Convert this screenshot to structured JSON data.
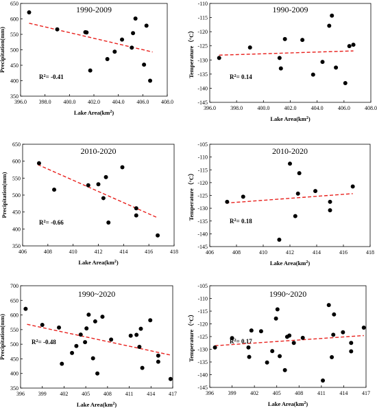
{
  "chart_data": [
    {
      "type": "scatter",
      "title": "1990-2009",
      "xlabel": "Lake Area(km²)",
      "ylabel": "Precipitation(mm)",
      "xlim": [
        396,
        408
      ],
      "ylim": [
        350,
        650
      ],
      "x_ticks": [
        "396.0",
        "398.0",
        "400.0",
        "402.0",
        "404.0",
        "406.0",
        "408.0"
      ],
      "y_ticks": [
        "350",
        "400",
        "450",
        "500",
        "550",
        "600",
        "650"
      ],
      "r2_label": "R²= -0.41",
      "trend": {
        "x": [
          396.7,
          406.8
        ],
        "y": [
          586,
          493
        ],
        "color": "#e8201c",
        "style": "dashed"
      },
      "points": [
        {
          "x": 396.7,
          "y": 621
        },
        {
          "x": 399.0,
          "y": 566
        },
        {
          "x": 401.3,
          "y": 557
        },
        {
          "x": 401.4,
          "y": 556
        },
        {
          "x": 401.7,
          "y": 433
        },
        {
          "x": 403.1,
          "y": 470
        },
        {
          "x": 403.7,
          "y": 494
        },
        {
          "x": 404.3,
          "y": 533
        },
        {
          "x": 405.1,
          "y": 507
        },
        {
          "x": 405.2,
          "y": 554
        },
        {
          "x": 405.4,
          "y": 601
        },
        {
          "x": 406.1,
          "y": 452
        },
        {
          "x": 406.3,
          "y": 578
        },
        {
          "x": 406.6,
          "y": 400
        }
      ]
    },
    {
      "type": "scatter",
      "title": "1990-2009",
      "xlabel": "Lake Area(km²)",
      "ylabel": "Temperature（°C）",
      "xlim": [
        396,
        408
      ],
      "ylim": [
        -145,
        -110
      ],
      "x_ticks": [
        "396.0",
        "398.0",
        "400.0",
        "402.0",
        "404.0",
        "406.0",
        "408.0"
      ],
      "y_ticks": [
        "-110",
        "-115",
        "-120",
        "-125",
        "-130",
        "-135",
        "-140",
        "-145"
      ],
      "r2_label": "R²= 0.14",
      "trend": {
        "x": [
          396.7,
          406.7
        ],
        "y": [
          -128.3,
          -126.8
        ],
        "color": "#e8201c",
        "style": "dashed"
      },
      "points": [
        {
          "x": 396.7,
          "y": -129.3
        },
        {
          "x": 399.0,
          "y": -125.6
        },
        {
          "x": 401.2,
          "y": -129.3
        },
        {
          "x": 401.3,
          "y": -133.0
        },
        {
          "x": 401.6,
          "y": -122.6
        },
        {
          "x": 402.9,
          "y": -122.9
        },
        {
          "x": 403.7,
          "y": -135.2
        },
        {
          "x": 404.4,
          "y": -130.7
        },
        {
          "x": 404.9,
          "y": -117.9
        },
        {
          "x": 405.1,
          "y": -114.3
        },
        {
          "x": 405.4,
          "y": -132.7
        },
        {
          "x": 406.1,
          "y": -138.2
        },
        {
          "x": 406.4,
          "y": -125.1
        },
        {
          "x": 406.7,
          "y": -124.6
        }
      ]
    },
    {
      "type": "scatter",
      "title": "2010-2020",
      "xlabel": "Lake Area(km²)",
      "ylabel": "Precipitation(mm)",
      "xlim": [
        406,
        418
      ],
      "ylim": [
        350,
        650
      ],
      "x_ticks": [
        "406",
        "408",
        "410",
        "412",
        "414",
        "416",
        "418"
      ],
      "y_ticks": [
        "350",
        "400",
        "450",
        "500",
        "550",
        "600",
        "650"
      ],
      "r2_label": "R²= -0.66",
      "trend": {
        "x": [
          407.2,
          416.7
        ],
        "y": [
          590,
          433
        ],
        "color": "#e8201c",
        "style": "dashed"
      },
      "points": [
        {
          "x": 407.3,
          "y": 594
        },
        {
          "x": 408.5,
          "y": 516
        },
        {
          "x": 411.2,
          "y": 529
        },
        {
          "x": 412.0,
          "y": 532
        },
        {
          "x": 412.4,
          "y": 491
        },
        {
          "x": 412.6,
          "y": 553
        },
        {
          "x": 412.8,
          "y": 419
        },
        {
          "x": 413.9,
          "y": 582
        },
        {
          "x": 415.0,
          "y": 461
        },
        {
          "x": 415.0,
          "y": 440
        },
        {
          "x": 416.7,
          "y": 381
        }
      ]
    },
    {
      "type": "scatter",
      "title": "2010-2020",
      "xlabel": "Lake Area(km²)",
      "ylabel": "Temperature（°C）",
      "xlim": [
        406,
        418
      ],
      "ylim": [
        -145,
        -105
      ],
      "x_ticks": [
        "406",
        "408",
        "410",
        "412",
        "414",
        "416",
        "418"
      ],
      "y_ticks": [
        "-105",
        "-110",
        "-115",
        "-120",
        "-125",
        "-130",
        "-135",
        "-140",
        "-145"
      ],
      "r2_label": "R²= 0.18",
      "trend": {
        "x": [
          407.2,
          416.7
        ],
        "y": [
          -128.0,
          -124.3
        ],
        "color": "#e8201c",
        "style": "dashed"
      },
      "points": [
        {
          "x": 407.3,
          "y": -127.5
        },
        {
          "x": 408.5,
          "y": -125.5
        },
        {
          "x": 411.2,
          "y": -142.3
        },
        {
          "x": 412.0,
          "y": -112.6
        },
        {
          "x": 412.4,
          "y": -133.1
        },
        {
          "x": 412.6,
          "y": -124.3
        },
        {
          "x": 412.7,
          "y": -116.3
        },
        {
          "x": 413.9,
          "y": -123.3
        },
        {
          "x": 415.0,
          "y": -127.5
        },
        {
          "x": 415.0,
          "y": -130.8
        },
        {
          "x": 416.7,
          "y": -121.5
        }
      ]
    },
    {
      "type": "scatter",
      "title": "1990~2020",
      "xlabel": "Lake Area(km²)",
      "ylabel": "Precipitation(mm)",
      "xlim": [
        396,
        417
      ],
      "ylim": [
        350,
        700
      ],
      "x_ticks": [
        "396",
        "399",
        "402",
        "405",
        "408",
        "411",
        "414",
        "417"
      ],
      "y_ticks": [
        "350",
        "400",
        "450",
        "500",
        "550",
        "600",
        "650",
        "700"
      ],
      "r2_label": "R²= -0.48",
      "trend": {
        "x": [
          396.9,
          416.7
        ],
        "y": [
          568,
          463
        ],
        "color": "#e8201c",
        "style": "dashed"
      },
      "points": [
        {
          "x": 396.7,
          "y": 621
        },
        {
          "x": 399.0,
          "y": 566
        },
        {
          "x": 401.3,
          "y": 557
        },
        {
          "x": 401.7,
          "y": 433
        },
        {
          "x": 403.1,
          "y": 470
        },
        {
          "x": 403.7,
          "y": 494
        },
        {
          "x": 404.3,
          "y": 533
        },
        {
          "x": 404.9,
          "y": 507
        },
        {
          "x": 405.1,
          "y": 554
        },
        {
          "x": 405.4,
          "y": 601
        },
        {
          "x": 406.0,
          "y": 452
        },
        {
          "x": 406.3,
          "y": 578
        },
        {
          "x": 406.6,
          "y": 400
        },
        {
          "x": 407.3,
          "y": 594
        },
        {
          "x": 408.5,
          "y": 516
        },
        {
          "x": 411.2,
          "y": 529
        },
        {
          "x": 412.0,
          "y": 532
        },
        {
          "x": 412.4,
          "y": 491
        },
        {
          "x": 412.6,
          "y": 553
        },
        {
          "x": 412.8,
          "y": 419
        },
        {
          "x": 413.9,
          "y": 582
        },
        {
          "x": 415.0,
          "y": 461
        },
        {
          "x": 415.0,
          "y": 440
        },
        {
          "x": 416.7,
          "y": 381
        }
      ]
    },
    {
      "type": "scatter",
      "title": "1990~2020",
      "xlabel": "Lake Area(km²)",
      "ylabel": "Temperature（°C）",
      "xlim": [
        396,
        417
      ],
      "ylim": [
        -145,
        -105
      ],
      "x_ticks": [
        "396",
        "399",
        "402",
        "405",
        "408",
        "411",
        "414",
        "417"
      ],
      "y_ticks": [
        "-105",
        "-110",
        "-115",
        "-120",
        "-125",
        "-130",
        "-135",
        "-140",
        "-145"
      ],
      "r2_label": "R²= 0.17",
      "trend": {
        "x": [
          396.7,
          416.7
        ],
        "y": [
          -128.6,
          -124.6
        ],
        "color": "#e8201c",
        "style": "dashed"
      },
      "points": [
        {
          "x": 396.7,
          "y": -129.3
        },
        {
          "x": 399.0,
          "y": -125.6
        },
        {
          "x": 401.2,
          "y": -129.3
        },
        {
          "x": 401.3,
          "y": -133.0
        },
        {
          "x": 401.6,
          "y": -122.6
        },
        {
          "x": 402.9,
          "y": -122.9
        },
        {
          "x": 403.7,
          "y": -135.2
        },
        {
          "x": 404.4,
          "y": -130.7
        },
        {
          "x": 404.9,
          "y": -117.9
        },
        {
          "x": 405.1,
          "y": -114.3
        },
        {
          "x": 405.4,
          "y": -132.7
        },
        {
          "x": 406.1,
          "y": -138.2
        },
        {
          "x": 406.4,
          "y": -125.1
        },
        {
          "x": 406.7,
          "y": -124.6
        },
        {
          "x": 407.3,
          "y": -127.5
        },
        {
          "x": 408.5,
          "y": -125.5
        },
        {
          "x": 411.2,
          "y": -142.3
        },
        {
          "x": 412.0,
          "y": -112.6
        },
        {
          "x": 412.4,
          "y": -133.1
        },
        {
          "x": 412.6,
          "y": -124.3
        },
        {
          "x": 412.7,
          "y": -116.3
        },
        {
          "x": 413.9,
          "y": -123.3
        },
        {
          "x": 415.0,
          "y": -127.5
        },
        {
          "x": 415.0,
          "y": -130.8
        },
        {
          "x": 416.7,
          "y": -121.5
        }
      ]
    }
  ]
}
